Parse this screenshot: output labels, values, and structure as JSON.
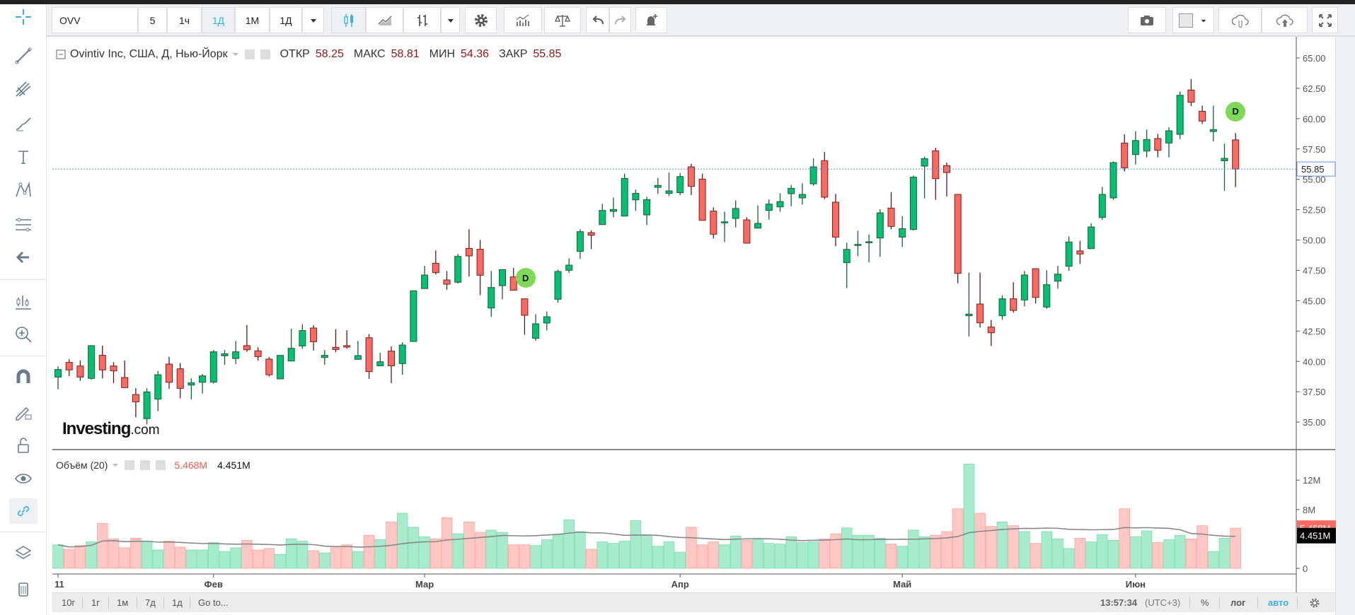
{
  "toolbar": {
    "symbol": "OVV",
    "intervals": [
      "5",
      "1ч",
      "1Д",
      "1М",
      "1Д"
    ],
    "active_interval": "1Д"
  },
  "legend": {
    "title": "Ovintiv Inc, США, Д, Нью-Йорк",
    "open_label": "ОТКР",
    "open": "58.25",
    "high_label": "МАКС",
    "high": "58.81",
    "low_label": "МИН",
    "low": "54.36",
    "close_label": "ЗАКР",
    "close": "55.85"
  },
  "volume_legend": {
    "title": "Объём (20)",
    "volume": "5.468M",
    "ma": "4.451M"
  },
  "logo": {
    "brand": "Investing",
    "suffix": ".com"
  },
  "markers": {
    "dividend": "D"
  },
  "price_axis": {
    "ticks": [
      "65.00",
      "62.50",
      "60.00",
      "57.50",
      "55.00",
      "52.50",
      "50.00",
      "47.50",
      "45.00",
      "42.50",
      "40.00",
      "37.50",
      "35.00"
    ],
    "current": "55.85"
  },
  "volume_axis": {
    "ticks": [
      "12M",
      "8M",
      "0"
    ],
    "current_volume": "5.468M",
    "current_ma": "4.451M"
  },
  "time_axis": {
    "labels": [
      "11",
      "Фев",
      "Мар",
      "Апр",
      "Май",
      "Июн"
    ]
  },
  "bottom": {
    "ranges": [
      "10г",
      "1г",
      "1м",
      "7д",
      "1д"
    ],
    "goto": "Go to...",
    "time": "13:57:34",
    "tz": "(UTC+3)",
    "percent": "%",
    "log": "лог",
    "auto": "авто"
  },
  "colors": {
    "up": "#00c170",
    "down": "#ff6a60",
    "up_vol": "#a7ebcd",
    "down_vol": "#ffc8c4",
    "price_line": "#6d8cf7",
    "accent": "#3bb2e2"
  },
  "chart_data": {
    "type": "candlestick",
    "title": "Ovintiv Inc, США, Д, Нью-Йорк",
    "ylim": [
      32.5,
      66
    ],
    "time_label_at_candle": [
      0,
      14,
      33,
      56,
      76,
      97
    ],
    "dividend_at_candle": [
      41,
      106
    ],
    "ohlc": [
      [
        38.71,
        39.59,
        37.7,
        39.33
      ],
      [
        39.92,
        40.17,
        38.79,
        39.3
      ],
      [
        39.62,
        40.07,
        38.4,
        38.71
      ],
      [
        38.6,
        41.3,
        38.5,
        41.3
      ],
      [
        40.5,
        41.3,
        38.6,
        39.3
      ],
      [
        39.62,
        39.93,
        38.2,
        39.22
      ],
      [
        38.67,
        40.07,
        37.84,
        37.84
      ],
      [
        37.27,
        37.8,
        35.4,
        36.67
      ],
      [
        35.28,
        37.8,
        34.8,
        37.49
      ],
      [
        36.89,
        39.2,
        35.9,
        38.9
      ],
      [
        39.78,
        40.38,
        37.74,
        38.28
      ],
      [
        39.39,
        39.86,
        36.96,
        37.78
      ],
      [
        38.05,
        38.6,
        36.87,
        38.24
      ],
      [
        38.28,
        38.96,
        37.35,
        38.81
      ],
      [
        38.3,
        40.94,
        38.17,
        40.79
      ],
      [
        40.46,
        40.94,
        39.72,
        40.63
      ],
      [
        40.24,
        41.68,
        39.78,
        40.79
      ],
      [
        41.3,
        43,
        40.79,
        40.96
      ],
      [
        40.87,
        41.16,
        40.07,
        40.4
      ],
      [
        40.19,
        40.36,
        38.77,
        38.9
      ],
      [
        38.56,
        40.5,
        38.56,
        40.5
      ],
      [
        40.03,
        42.69,
        40.03,
        41.08
      ],
      [
        41.27,
        43.06,
        41.04,
        42.54
      ],
      [
        42.75,
        42.98,
        40.89,
        41.62
      ],
      [
        40.32,
        40.94,
        39.72,
        40.5
      ],
      [
        41.16,
        42.65,
        40.75,
        40.98
      ],
      [
        41.3,
        42.57,
        41.04,
        41.18
      ],
      [
        40.17,
        41.68,
        40.17,
        40.48
      ],
      [
        41.95,
        42.25,
        38.56,
        39.16
      ],
      [
        39.64,
        40.71,
        39.64,
        39.97
      ],
      [
        40.85,
        41.24,
        38.21,
        39.64
      ],
      [
        39.82,
        41.58,
        38.9,
        41.35
      ],
      [
        41.64,
        45.82,
        41.64,
        45.82
      ],
      [
        46.0,
        47.88,
        46.0,
        47.12
      ],
      [
        48.09,
        49.14,
        47.16,
        47.31
      ],
      [
        46.71,
        47.45,
        45.9,
        46.36
      ],
      [
        46.52,
        48.85,
        46.42,
        48.65
      ],
      [
        49.31,
        50.89,
        47.0,
        48.69
      ],
      [
        49.24,
        50.01,
        45.47,
        47.1
      ],
      [
        44.4,
        47.45,
        43.66,
        46.09
      ],
      [
        46.24,
        47.56,
        45.12,
        47.56
      ],
      [
        46.96,
        47.7,
        45.86,
        45.86
      ],
      [
        45.16,
        45.16,
        42.2,
        43.8
      ],
      [
        41.9,
        43.9,
        41.7,
        43.1
      ],
      [
        43.16,
        44.11,
        42.55,
        43.68
      ],
      [
        45.12,
        47.56,
        44.83,
        47.41
      ],
      [
        47.51,
        48.48,
        47.29,
        47.93
      ],
      [
        49.06,
        50.89,
        48.46,
        50.69
      ],
      [
        50.61,
        50.79,
        49.25,
        50.4
      ],
      [
        51.27,
        52.98,
        51.27,
        52.44
      ],
      [
        52.36,
        53.5,
        51.88,
        52.52
      ],
      [
        51.97,
        55.47,
        51.97,
        55.08
      ],
      [
        53.31,
        54.15,
        52.4,
        53.84
      ],
      [
        52.07,
        53.56,
        51.24,
        53.33
      ],
      [
        54.34,
        55.12,
        53.8,
        54.5
      ],
      [
        53.84,
        55.56,
        53.62,
        54.05
      ],
      [
        53.9,
        55.51,
        53.7,
        55.23
      ],
      [
        56.03,
        56.28,
        53.7,
        54.42
      ],
      [
        55.02,
        55.47,
        51.62,
        51.62
      ],
      [
        52.38,
        52.69,
        50.13,
        50.48
      ],
      [
        51.47,
        52.34,
        49.84,
        51.5
      ],
      [
        51.78,
        53.27,
        51.04,
        52.6
      ],
      [
        51.66,
        51.88,
        49.74,
        49.74
      ],
      [
        50.98,
        52.85,
        50.98,
        51.37
      ],
      [
        52.44,
        53.35,
        51.68,
        52.96
      ],
      [
        52.73,
        53.86,
        52.34,
        53.17
      ],
      [
        53.82,
        54.54,
        52.79,
        54.26
      ],
      [
        53.47,
        54.67,
        52.92,
        53.76
      ],
      [
        54.63,
        56.73,
        54.48,
        56.03
      ],
      [
        56.54,
        57.25,
        53.37,
        53.53
      ],
      [
        53.12,
        53.8,
        49.49,
        50.24
      ],
      [
        48.13,
        49.78,
        46.05,
        49.23
      ],
      [
        49.6,
        50.75,
        48.67,
        49.64
      ],
      [
        49.83,
        50.46,
        48.17,
        49.86
      ],
      [
        50.17,
        52.53,
        48.61,
        52.24
      ],
      [
        52.63,
        53.95,
        50.88,
        51.12
      ],
      [
        50.24,
        51.97,
        49.43,
        50.94
      ],
      [
        50.87,
        55.31,
        50.79,
        55.18
      ],
      [
        56.09,
        56.87,
        53.43,
        56.71
      ],
      [
        57.35,
        57.6,
        53.31,
        55.06
      ],
      [
        56.13,
        56.38,
        53.58,
        55.56
      ],
      [
        53.76,
        53.76,
        46.44,
        47.25
      ],
      [
        43.76,
        47.31,
        42.05,
        43.9
      ],
      [
        44.73,
        47.31,
        42.79,
        43.18
      ],
      [
        42.83,
        43.41,
        41.27,
        42.36
      ],
      [
        43.76,
        45.45,
        43.43,
        45.16
      ],
      [
        45.16,
        46.52,
        44.01,
        44.2
      ],
      [
        45.06,
        47.45,
        44.53,
        47.12
      ],
      [
        47.64,
        47.64,
        44.77,
        45.27
      ],
      [
        44.48,
        47.51,
        44.34,
        46.32
      ],
      [
        46.61,
        47.87,
        45.99,
        47.19
      ],
      [
        47.84,
        50.3,
        47.45,
        49.84
      ],
      [
        49.1,
        49.93,
        48.03,
        48.85
      ],
      [
        49.29,
        51.37,
        49.29,
        51.08
      ],
      [
        51.86,
        54.38,
        51.66,
        53.76
      ],
      [
        53.47,
        56.48,
        53.31,
        56.38
      ],
      [
        57.99,
        58.71,
        55.64,
        55.95
      ],
      [
        57.04,
        58.96,
        56.22,
        58.2
      ],
      [
        57.33,
        59.1,
        56.81,
        58.28
      ],
      [
        58.36,
        58.75,
        56.81,
        57.39
      ],
      [
        57.99,
        59.29,
        56.81,
        59.0
      ],
      [
        58.71,
        62.24,
        58.32,
        61.93
      ],
      [
        62.36,
        63.27,
        61.04,
        61.35
      ],
      [
        60.61,
        61.08,
        59.56,
        59.8
      ],
      [
        58.94,
        61.08,
        58.13,
        59.1
      ],
      [
        56.53,
        57.93,
        54.05,
        56.73
      ],
      [
        58.25,
        58.81,
        54.36,
        55.85
      ]
    ],
    "volume_millions": [
      3.2,
      2.6,
      3.1,
      3.6,
      6.1,
      4.0,
      2.8,
      4.1,
      3.7,
      2.5,
      3.7,
      2.9,
      2.5,
      2.5,
      3.5,
      2.3,
      2.8,
      3.8,
      2.5,
      2.7,
      1.9,
      4.0,
      3.7,
      2.4,
      2.1,
      2.8,
      3.2,
      2.3,
      4.5,
      3.9,
      6.3,
      7.5,
      5.6,
      4.3,
      4.0,
      6.9,
      4.7,
      6.3,
      4.9,
      5.2,
      4.9,
      3.2,
      3.2,
      3.1,
      3.9,
      4.6,
      6.6,
      5.0,
      2.6,
      3.6,
      3.4,
      3.7,
      6.5,
      4.5,
      3.0,
      3.6,
      2.2,
      5.6,
      3.2,
      3.6,
      3.2,
      4.4,
      3.8,
      4.0,
      3.4,
      3.3,
      4.3,
      3.5,
      3.6,
      4.0,
      4.7,
      5.5,
      4.5,
      4.5,
      4.1,
      3.3,
      3.0,
      5.2,
      4.3,
      4.5,
      5.0,
      8.1,
      14.2,
      7.5,
      5.7,
      6.3,
      5.8,
      5.0,
      3.4,
      5.0,
      4.0,
      2.7,
      4.1,
      3.6,
      4.6,
      3.8,
      8.1,
      4.3,
      5.1,
      3.5,
      3.9,
      4.5,
      4.0,
      5.8,
      2.3,
      4.1,
      5.468
    ],
    "volume_ma_period": 20,
    "volume_ylim": [
      0,
      14.5
    ]
  }
}
